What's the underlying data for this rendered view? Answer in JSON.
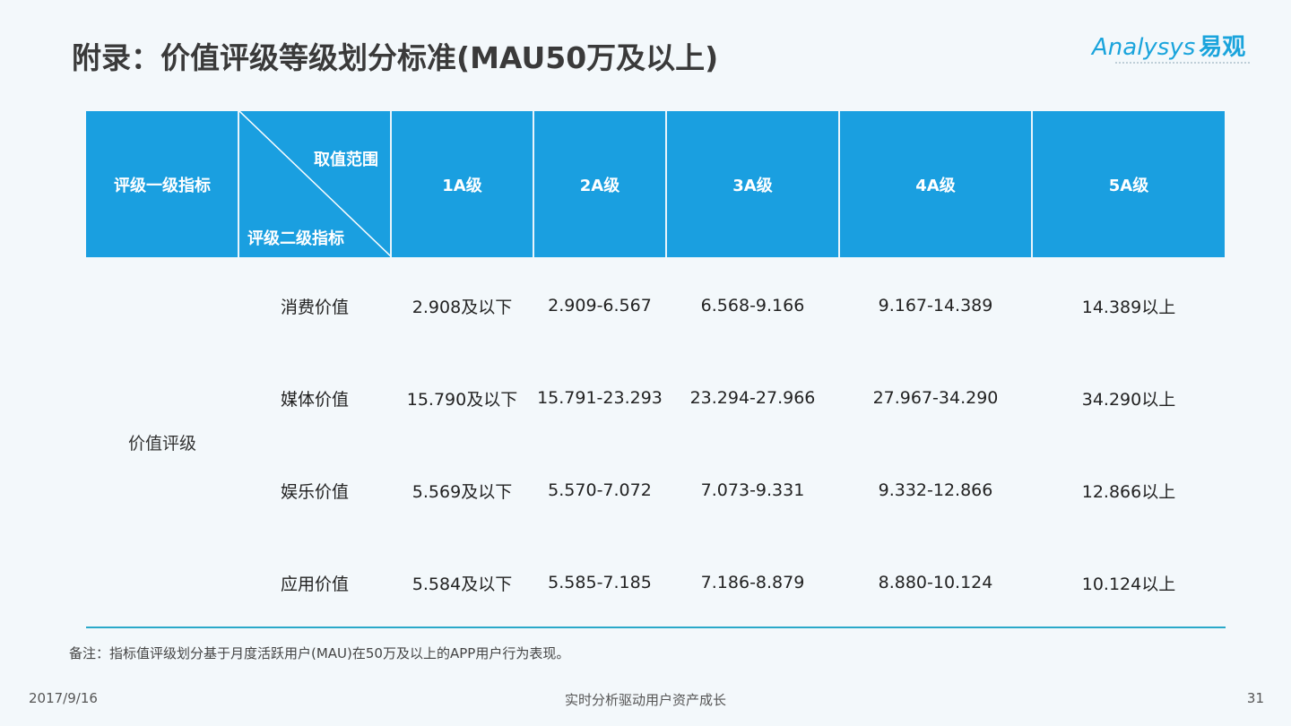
{
  "title": "附录：价值评级等级划分标准(MAU50万及以上)",
  "logo": {
    "text_latin": "Analysys",
    "text_cn": "易观"
  },
  "header": {
    "col0": "评级一级指标",
    "diag_top": "取值范围",
    "diag_bottom": "评级二级指标",
    "levels": [
      "1A级",
      "2A级",
      "3A级",
      "4A级",
      "5A级"
    ]
  },
  "category": "价值评级",
  "rows": [
    {
      "name": "消费价值",
      "values": [
        "2.908及以下",
        "2.909-6.567",
        "6.568-9.166",
        "9.167-14.389",
        "14.389以上"
      ]
    },
    {
      "name": "媒体价值",
      "values": [
        "15.790及以下",
        "15.791-23.293",
        "23.294-27.966",
        "27.967-34.290",
        "34.290以上"
      ]
    },
    {
      "name": "娱乐价值",
      "values": [
        "5.569及以下",
        "5.570-7.072",
        "7.073-9.331",
        "9.332-12.866",
        "12.866以上"
      ]
    },
    {
      "name": "应用价值",
      "values": [
        "5.584及以下",
        "5.585-7.185",
        "7.186-8.879",
        "8.880-10.124",
        "10.124以上"
      ]
    }
  ],
  "note": "备注：指标值评级划分基于月度活跃用户(MAU)在50万及以上的APP用户行为表现。",
  "footer": {
    "date": "2017/9/16",
    "center": "实时分析驱动用户资产成长",
    "page": "31"
  }
}
